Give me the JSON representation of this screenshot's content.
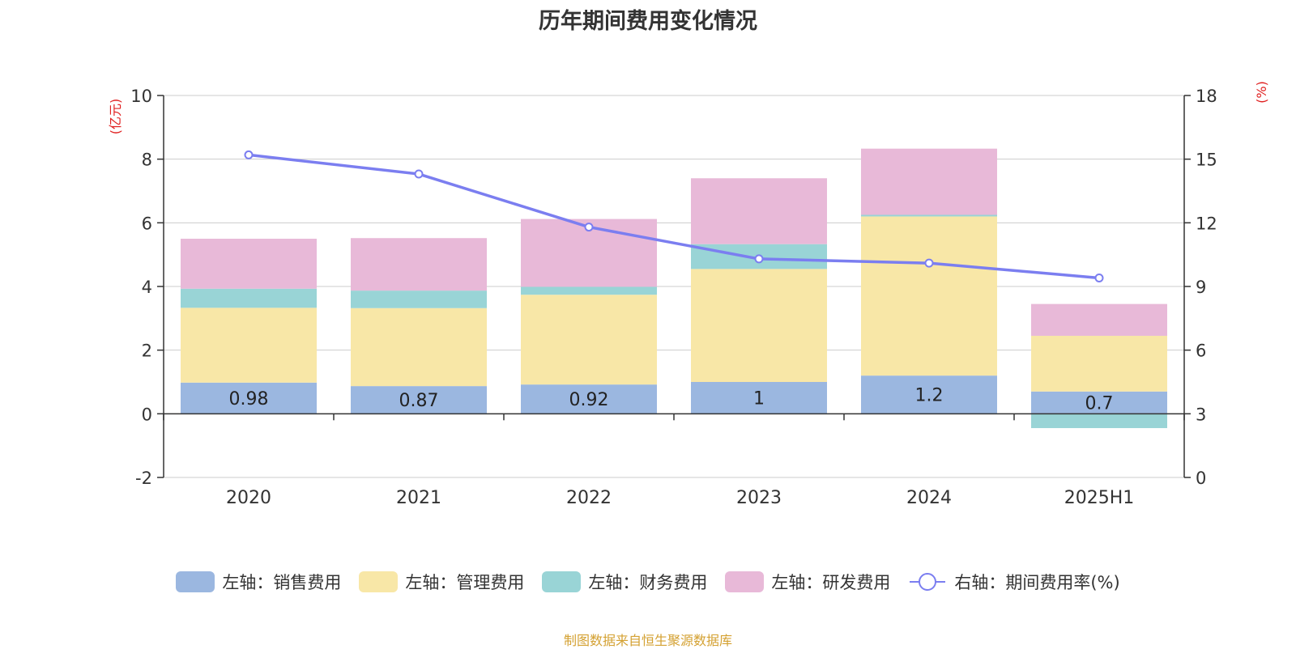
{
  "chart_data": {
    "type": "bar",
    "title": "历年期间费用变化情况",
    "categories": [
      "2020",
      "2021",
      "2022",
      "2023",
      "2024",
      "2025H1"
    ],
    "y_left": {
      "unit_label": "(亿元)",
      "ticks": [
        "-2",
        "0",
        "2",
        "4",
        "6",
        "8",
        "10"
      ],
      "range": [
        -2,
        10
      ]
    },
    "y_right": {
      "unit_label": "(%)",
      "ticks": [
        "0",
        "3",
        "6",
        "9",
        "12",
        "15",
        "18"
      ],
      "range": [
        0,
        18
      ]
    },
    "stacked": true,
    "grid": true,
    "legend_position": "bottom",
    "series": [
      {
        "name": "左轴：销售费用",
        "type": "bar",
        "axis": "left",
        "color": "#9bb7e0",
        "values": [
          0.98,
          0.87,
          0.92,
          1.0,
          1.2,
          0.7
        ],
        "labels": [
          "0.98",
          "0.87",
          "0.92",
          "1",
          "1.2",
          "0.7"
        ]
      },
      {
        "name": "左轴：管理费用",
        "type": "bar",
        "axis": "left",
        "color": "#f8e7a7",
        "values": [
          2.35,
          2.45,
          2.82,
          3.55,
          5.0,
          1.75
        ]
      },
      {
        "name": "左轴：财务费用",
        "type": "bar",
        "axis": "left",
        "color": "#99d4d6",
        "values": [
          0.6,
          0.55,
          0.25,
          0.78,
          0.05,
          -0.45
        ]
      },
      {
        "name": "左轴：研发费用",
        "type": "bar",
        "axis": "left",
        "color": "#e8b9d8",
        "values": [
          1.57,
          1.65,
          2.13,
          2.07,
          2.08,
          1.0
        ]
      },
      {
        "name": "右轴：期间费用率(%)",
        "type": "line",
        "axis": "right",
        "color": "#7b7ef0",
        "values": [
          15.2,
          14.3,
          11.8,
          10.3,
          10.1,
          9.4
        ]
      }
    ]
  },
  "source_note": "制图数据来自恒生聚源数据库"
}
